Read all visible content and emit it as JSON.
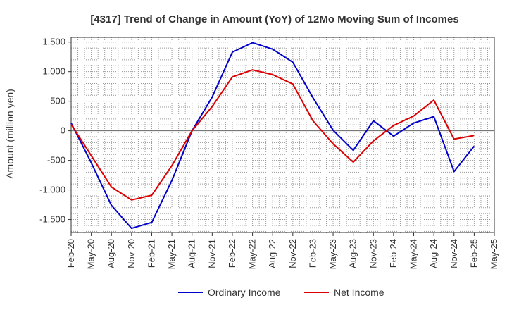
{
  "chart_data": {
    "type": "line",
    "title": "[4317]  Trend of Change in Amount (YoY) of 12Mo Moving Sum of Incomes",
    "xlabel": "",
    "ylabel": "Amount (million yen)",
    "ylim": [
      -1720,
      1580
    ],
    "yticks": [
      1500,
      1000,
      500,
      0,
      -500,
      -1000,
      -1500
    ],
    "ytick_labels": [
      "1,500",
      "1,000",
      "500",
      "0",
      "-500",
      "-1,000",
      "-1,500"
    ],
    "x": [
      "Feb-20",
      "May-20",
      "Aug-20",
      "Nov-20",
      "Feb-21",
      "May-21",
      "Aug-21",
      "Nov-21",
      "Feb-22",
      "May-22",
      "Aug-22",
      "Nov-22",
      "Feb-23",
      "May-23",
      "Aug-23",
      "Nov-23",
      "Feb-24",
      "May-24",
      "Aug-24",
      "Nov-24",
      "Feb-25",
      "May-25"
    ],
    "grid": true,
    "legend_position": "bottom-center",
    "series": [
      {
        "name": "Ordinary Income",
        "color": "#0000cc",
        "values": [
          130,
          -540,
          -1260,
          -1650,
          -1550,
          -840,
          0,
          570,
          1330,
          1490,
          1380,
          1160,
          560,
          10,
          -330,
          170,
          -90,
          130,
          240,
          -690,
          -260,
          null
        ]
      },
      {
        "name": "Net Income",
        "color": "#dd0000",
        "values": [
          110,
          -420,
          -950,
          -1170,
          -1090,
          -590,
          0,
          410,
          910,
          1030,
          950,
          790,
          170,
          -220,
          -530,
          -170,
          90,
          250,
          520,
          -140,
          -80,
          null
        ]
      }
    ]
  }
}
